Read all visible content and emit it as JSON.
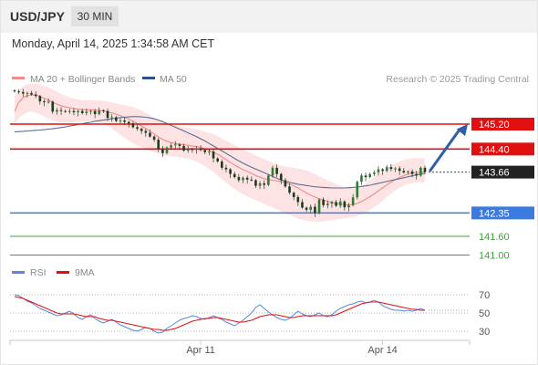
{
  "header": {
    "symbol": "USD/JPY",
    "timeframe": "30 MIN",
    "datetime": "Monday, April 14, 2025 1:34:58 AM CET"
  },
  "legend": {
    "ma20_label": "MA 20 + Bollinger Bands",
    "ma50_label": "MA 50",
    "credit": "Research © 2025 Trading Central",
    "rsi_label": "RSI",
    "rsi_ma_label": "9MA"
  },
  "colors": {
    "candle_up": "#2e7d32",
    "candle_down": "#1b3d1f",
    "ma20": "#f28b8b",
    "band_fill": "#fde3e3",
    "ma50": "#5a6f94",
    "resistance": "#e01010",
    "support": "#3b7be0",
    "minor_support": "#3fa03f",
    "arrow": "#2f5ea8",
    "rsi": "#5b86d9",
    "rsi_ma": "#e01010"
  },
  "chart_data": [
    {
      "type": "candlestick",
      "y_unit": "JPY per USD",
      "ylim": [
        140.4,
        146.4
      ],
      "x_tick_labels": [
        "Apr 11",
        "Apr 14"
      ],
      "current_price": 143.66,
      "levels": [
        {
          "label": "145.20",
          "value": 145.2,
          "kind": "resistance",
          "color": "#e01010"
        },
        {
          "label": "144.40",
          "value": 144.4,
          "kind": "resistance",
          "color": "#e01010"
        },
        {
          "label": "143.66",
          "value": 143.66,
          "kind": "current",
          "color": "#222222"
        },
        {
          "label": "142.35",
          "value": 142.35,
          "kind": "support",
          "color": "#3b7be0"
        },
        {
          "label": "141.60",
          "value": 141.6,
          "kind": "support",
          "color": "#3fa03f"
        },
        {
          "label": "141.00",
          "value": 141.0,
          "kind": "support",
          "color": "#3fa03f"
        }
      ],
      "series": [
        {
          "type": "candles",
          "close": [
            146.25,
            146.23,
            146.18,
            146.2,
            146.15,
            146.1,
            145.93,
            145.9,
            145.92,
            145.6,
            145.65,
            145.62,
            145.6,
            145.62,
            145.58,
            145.62,
            145.55,
            145.6,
            145.62,
            145.52,
            145.64,
            145.62,
            145.4,
            145.42,
            145.3,
            145.32,
            145.27,
            145.22,
            145.1,
            145.05,
            144.98,
            144.92,
            144.8,
            144.7,
            144.4,
            144.27,
            144.45,
            144.52,
            144.55,
            144.5,
            144.35,
            144.4,
            144.38,
            144.42,
            144.37,
            144.3,
            144.32,
            144.1,
            144.0,
            143.8,
            143.75,
            143.6,
            143.5,
            143.4,
            143.48,
            143.42,
            143.4,
            143.22,
            143.3,
            143.25,
            143.55,
            143.8,
            143.6,
            143.4,
            143.2,
            143.0,
            142.86,
            142.7,
            142.52,
            142.45,
            142.55,
            142.35,
            142.78,
            142.6,
            142.65,
            142.7,
            142.58,
            142.72,
            142.53,
            142.6,
            142.85,
            143.35,
            143.55,
            143.5,
            143.6,
            143.65,
            143.75,
            143.7,
            143.82,
            143.76,
            143.78,
            143.7,
            143.65,
            143.68,
            143.6,
            143.55,
            143.8,
            143.66
          ]
        },
        {
          "name": "MA 20",
          "values": [
            145.6,
            145.9,
            146.05,
            146.12,
            146.14,
            146.13,
            146.09,
            146.03,
            145.97,
            145.9,
            145.84,
            145.79,
            145.75,
            145.72,
            145.7,
            145.68,
            145.67,
            145.66,
            145.66,
            145.65,
            145.64,
            145.62,
            145.59,
            145.56,
            145.52,
            145.47,
            145.42,
            145.36,
            145.29,
            145.22,
            145.14,
            145.06,
            144.97,
            144.88,
            144.79,
            144.71,
            144.65,
            144.61,
            144.58,
            144.56,
            144.54,
            144.52,
            144.5,
            144.48,
            144.45,
            144.41,
            144.36,
            144.3,
            144.23,
            144.15,
            144.06,
            143.97,
            143.89,
            143.81,
            143.74,
            143.68,
            143.62,
            143.55,
            143.5,
            143.45,
            143.42,
            143.4,
            143.38,
            143.35,
            143.32,
            143.28,
            143.22,
            143.15,
            143.07,
            142.99,
            142.92,
            142.86,
            142.81,
            142.76,
            142.72,
            142.69,
            142.66,
            142.64,
            142.62,
            142.61,
            142.62,
            142.66,
            142.72,
            142.79,
            142.87,
            142.96,
            143.06,
            143.15,
            143.25,
            143.34,
            143.42,
            143.49,
            143.55,
            143.6,
            143.63,
            143.65,
            143.66,
            143.67
          ]
        },
        {
          "name": "Bollinger upper",
          "values": [
            146.1,
            146.3,
            146.42,
            146.48,
            146.5,
            146.49,
            146.46,
            146.42,
            146.37,
            146.31,
            146.24,
            146.17,
            146.11,
            146.06,
            146.02,
            145.99,
            145.97,
            145.96,
            145.96,
            145.96,
            145.96,
            145.95,
            145.93,
            145.9,
            145.87,
            145.84,
            145.81,
            145.78,
            145.74,
            145.69,
            145.63,
            145.56,
            145.48,
            145.4,
            145.33,
            145.27,
            145.22,
            145.18,
            145.15,
            145.12,
            145.1,
            145.08,
            145.06,
            145.03,
            145.0,
            144.96,
            144.92,
            144.87,
            144.81,
            144.74,
            144.67,
            144.6,
            144.52,
            144.45,
            144.38,
            144.32,
            144.26,
            144.2,
            144.14,
            144.08,
            144.02,
            143.96,
            143.91,
            143.87,
            143.84,
            143.82,
            143.8,
            143.78,
            143.75,
            143.71,
            143.66,
            143.6,
            143.53,
            143.46,
            143.39,
            143.33,
            143.27,
            143.22,
            143.18,
            143.15,
            143.14,
            143.16,
            143.22,
            143.3,
            143.4,
            143.5,
            143.6,
            143.7,
            143.79,
            143.87,
            143.94,
            144.0,
            144.05,
            144.08,
            144.1,
            144.11,
            144.11,
            144.1
          ]
        },
        {
          "name": "Bollinger lower",
          "values": [
            145.2,
            145.4,
            145.5,
            145.58,
            145.6,
            145.57,
            145.52,
            145.45,
            145.38,
            145.32,
            145.28,
            145.26,
            145.25,
            145.25,
            145.26,
            145.27,
            145.28,
            145.29,
            145.29,
            145.28,
            145.26,
            145.22,
            145.15,
            145.06,
            144.96,
            144.86,
            144.76,
            144.67,
            144.59,
            144.52,
            144.46,
            144.4,
            144.35,
            144.3,
            144.25,
            144.21,
            144.18,
            144.16,
            144.15,
            144.14,
            144.12,
            144.09,
            144.05,
            144.0,
            143.93,
            143.85,
            143.76,
            143.66,
            143.55,
            143.44,
            143.33,
            143.22,
            143.12,
            143.03,
            142.95,
            142.88,
            142.82,
            142.76,
            142.7,
            142.64,
            142.58,
            142.52,
            142.46,
            142.4,
            142.34,
            142.28,
            142.22,
            142.17,
            142.13,
            142.1,
            142.08,
            142.07,
            142.07,
            142.08,
            142.1,
            142.12,
            142.14,
            142.16,
            142.18,
            142.2,
            142.22,
            142.25,
            142.3,
            142.36,
            142.44,
            142.53,
            142.63,
            142.74,
            142.86,
            142.97,
            143.07,
            143.16,
            143.23,
            143.28,
            143.31,
            143.33,
            143.34,
            143.34
          ]
        },
        {
          "name": "MA 50",
          "values": [
            144.95,
            144.96,
            144.97,
            144.98,
            144.99,
            145.0,
            145.01,
            145.02,
            145.04,
            145.05,
            145.07,
            145.09,
            145.11,
            145.14,
            145.16,
            145.19,
            145.21,
            145.24,
            145.26,
            145.29,
            145.31,
            145.33,
            145.35,
            145.37,
            145.39,
            145.41,
            145.42,
            145.43,
            145.44,
            145.44,
            145.43,
            145.42,
            145.4,
            145.37,
            145.33,
            145.28,
            145.22,
            145.16,
            145.1,
            145.04,
            144.98,
            144.92,
            144.86,
            144.8,
            144.73,
            144.66,
            144.58,
            144.5,
            144.42,
            144.34,
            144.26,
            144.18,
            144.1,
            144.02,
            143.95,
            143.88,
            143.82,
            143.76,
            143.7,
            143.64,
            143.58,
            143.52,
            143.46,
            143.41,
            143.37,
            143.33,
            143.3,
            143.27,
            143.25,
            143.23,
            143.21,
            143.19,
            143.18,
            143.17,
            143.16,
            143.15,
            143.15,
            143.15,
            143.15,
            143.16,
            143.17,
            143.18,
            143.2,
            143.22,
            143.24,
            143.27,
            143.3,
            143.33,
            143.36,
            143.39,
            143.42,
            143.45,
            143.48,
            143.51,
            143.54,
            143.57,
            143.6,
            143.62
          ]
        }
      ]
    },
    {
      "type": "line",
      "ylim": [
        20,
        80
      ],
      "y_tick_labels": [
        "70",
        "50",
        "30"
      ],
      "series": [
        {
          "name": "RSI",
          "values": [
            70,
            69,
            66,
            63,
            61,
            58,
            55,
            53,
            51,
            49,
            47,
            48,
            50,
            52,
            49,
            45,
            43,
            46,
            48,
            44,
            41,
            39,
            41,
            43,
            40,
            37,
            35,
            33,
            31,
            30,
            32,
            34,
            33,
            30,
            28,
            29,
            33,
            36,
            39,
            42,
            44,
            45,
            47,
            46,
            44,
            43,
            45,
            47,
            45,
            43,
            40,
            38,
            36,
            39,
            42,
            46,
            50,
            56,
            59,
            55,
            51,
            48,
            45,
            43,
            42,
            44,
            48,
            52,
            49,
            47,
            46,
            48,
            50,
            47,
            46,
            48,
            52,
            55,
            57,
            59,
            60,
            62,
            63,
            61,
            62,
            64,
            62,
            58,
            56,
            54,
            53,
            53,
            52,
            53,
            52,
            53,
            55,
            53
          ]
        },
        {
          "name": "9MA",
          "values": [
            68,
            67,
            66,
            64,
            62,
            60,
            58,
            56,
            54,
            52,
            50,
            49,
            49,
            49,
            49,
            48,
            47,
            46,
            46,
            46,
            44,
            43,
            42,
            42,
            41,
            40,
            39,
            38,
            37,
            36,
            35,
            34,
            33,
            32,
            32,
            31,
            31,
            32,
            33,
            35,
            37,
            39,
            41,
            42,
            43,
            44,
            44,
            45,
            45,
            44,
            43,
            42,
            41,
            40,
            40,
            41,
            42,
            44,
            46,
            47,
            48,
            48,
            48,
            47,
            46,
            45,
            45,
            46,
            47,
            47,
            47,
            47,
            47,
            47,
            47,
            47,
            48,
            50,
            52,
            54,
            56,
            58,
            60,
            61,
            62,
            62,
            62,
            61,
            60,
            59,
            58,
            57,
            56,
            55,
            54,
            54,
            53,
            53
          ]
        }
      ]
    }
  ]
}
